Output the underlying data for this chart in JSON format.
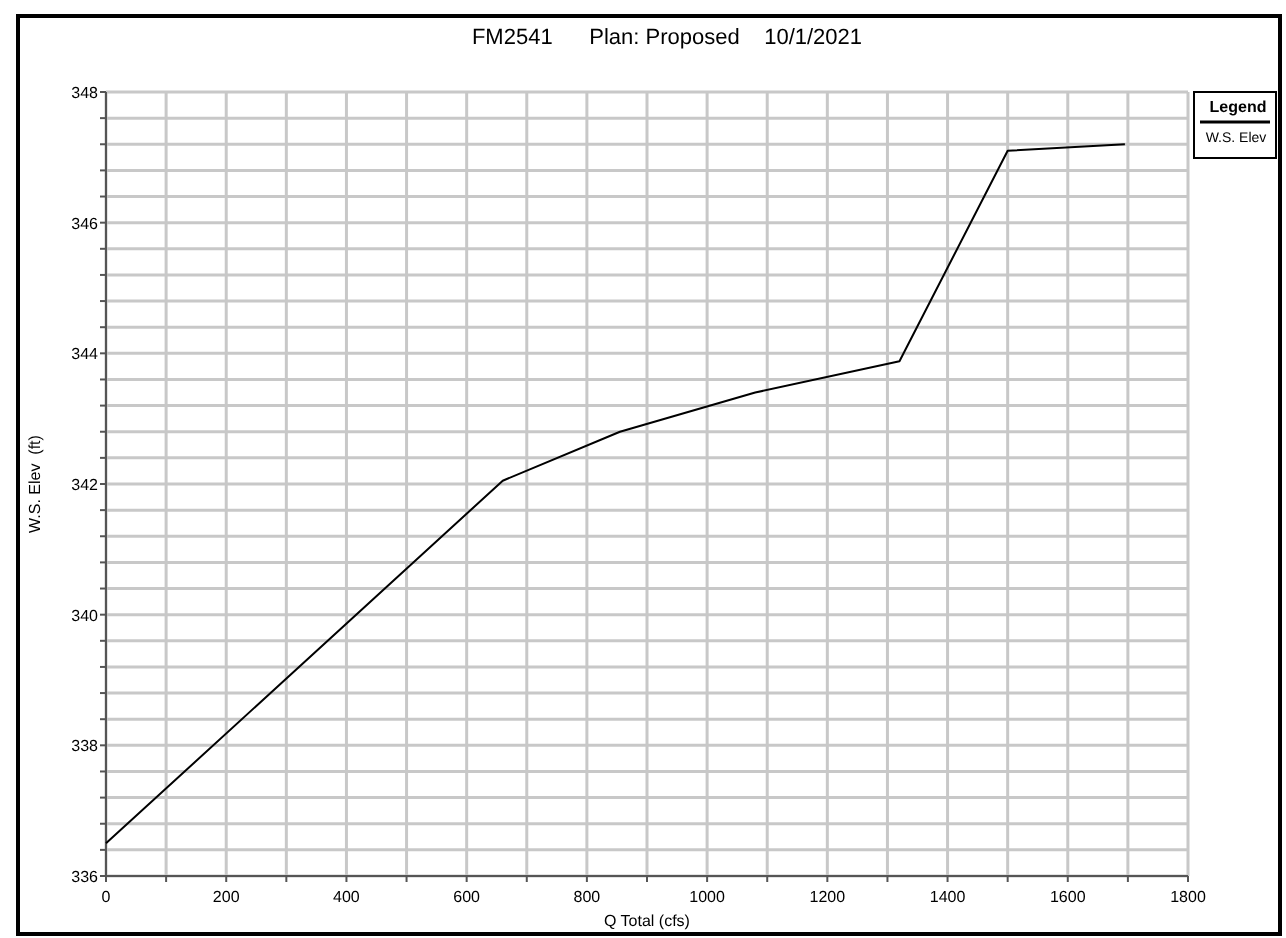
{
  "chart_data": {
    "type": "line",
    "title": "FM2541      Plan: Proposed    10/1/2021",
    "xlabel": "Q Total  (cfs)",
    "ylabel": "W.S. Elev  (ft)",
    "legend_title": "Legend",
    "x": [
      0,
      660,
      855,
      1080,
      1320,
      1500,
      1695
    ],
    "series": [
      {
        "name": "W.S. Elev",
        "color": "#000000",
        "values": [
          336.5,
          342.05,
          342.8,
          343.4,
          343.88,
          347.1,
          347.2
        ]
      }
    ],
    "xlim": [
      0,
      1800
    ],
    "xticks": [
      0,
      {
        "value": 100,
        "label": null
      },
      200,
      {
        "value": 300,
        "label": null
      },
      400,
      {
        "value": 500,
        "label": null
      },
      600,
      {
        "value": 700,
        "label": null
      },
      800,
      {
        "value": 900,
        "label": null
      },
      1000,
      {
        "value": 1100,
        "label": null
      },
      1200,
      {
        "value": 1300,
        "label": null
      },
      1400,
      {
        "value": 1500,
        "label": null
      },
      1600,
      {
        "value": 1700,
        "label": null
      },
      1800
    ],
    "ylim": [
      336,
      348
    ],
    "yticks": [
      336,
      {
        "value": 336.4,
        "label": null
      },
      {
        "value": 336.8,
        "label": null
      },
      {
        "value": 337.2,
        "label": null
      },
      {
        "value": 337.6,
        "label": null
      },
      338,
      {
        "value": 338.4,
        "label": null
      },
      {
        "value": 338.8,
        "label": null
      },
      {
        "value": 339.2,
        "label": null
      },
      {
        "value": 339.6,
        "label": null
      },
      340,
      {
        "value": 340.4,
        "label": null
      },
      {
        "value": 340.8,
        "label": null
      },
      {
        "value": 341.2,
        "label": null
      },
      {
        "value": 341.6,
        "label": null
      },
      342,
      {
        "value": 342.4,
        "label": null
      },
      {
        "value": 342.8,
        "label": null
      },
      {
        "value": 343.2,
        "label": null
      },
      {
        "value": 343.6,
        "label": null
      },
      344,
      {
        "value": 344.4,
        "label": null
      },
      {
        "value": 344.8,
        "label": null
      },
      {
        "value": 345.2,
        "label": null
      },
      {
        "value": 345.6,
        "label": null
      },
      346,
      {
        "value": 346.4,
        "label": null
      },
      {
        "value": 346.8,
        "label": null
      },
      {
        "value": 347.2,
        "label": null
      },
      {
        "value": 347.6,
        "label": null
      },
      348
    ],
    "grid": true,
    "legend": "top right",
    "marker": "none",
    "line_style": "solid"
  }
}
